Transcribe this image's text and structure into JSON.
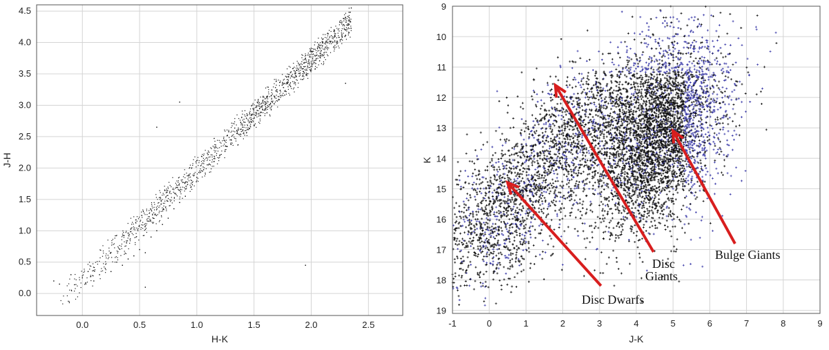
{
  "chart_data": [
    {
      "type": "scatter",
      "title": "",
      "xlabel": "H-K",
      "ylabel": "J-H",
      "xlim": [
        -0.4,
        2.8
      ],
      "ylim": [
        -0.35,
        4.6
      ],
      "grid": true,
      "xticks": [
        "0.0",
        "0.5",
        "1.0",
        "1.5",
        "2.0",
        "2.5"
      ],
      "yticks": [
        "0.0",
        "0.5",
        "1.0",
        "1.5",
        "2.0",
        "2.5",
        "3.0",
        "3.5",
        "4.0",
        "4.5"
      ],
      "series": [
        {
          "color": "#000000",
          "points": [
            [
              -0.25,
              0.2
            ],
            [
              -0.2,
              0.15
            ],
            [
              -0.1,
              0.3
            ],
            [
              0.0,
              0.25
            ],
            [
              0.05,
              0.35
            ],
            [
              0.1,
              0.2
            ],
            [
              0.15,
              0.3
            ],
            [
              0.2,
              0.4
            ],
            [
              0.25,
              0.35
            ],
            [
              0.3,
              0.5
            ],
            [
              0.35,
              0.45
            ],
            [
              0.4,
              0.55
            ],
            [
              0.45,
              0.6
            ],
            [
              0.5,
              0.7
            ],
            [
              0.55,
              0.65
            ],
            [
              0.6,
              0.9
            ],
            [
              0.65,
              1.0
            ],
            [
              0.7,
              1.1
            ],
            [
              0.75,
              1.2
            ],
            [
              0.8,
              1.35
            ],
            [
              0.85,
              1.45
            ],
            [
              0.9,
              1.55
            ],
            [
              0.95,
              1.7
            ],
            [
              1.0,
              1.85
            ],
            [
              1.05,
              1.95
            ],
            [
              1.1,
              2.05
            ],
            [
              1.15,
              2.15
            ],
            [
              1.2,
              2.2
            ],
            [
              1.25,
              2.35
            ],
            [
              1.3,
              2.45
            ],
            [
              1.35,
              2.55
            ],
            [
              1.4,
              2.65
            ],
            [
              1.45,
              2.75
            ],
            [
              1.5,
              2.85
            ],
            [
              1.55,
              2.95
            ],
            [
              1.6,
              3.05
            ],
            [
              1.65,
              3.15
            ],
            [
              1.7,
              3.25
            ],
            [
              1.75,
              3.35
            ],
            [
              1.8,
              3.45
            ],
            [
              1.85,
              3.55
            ],
            [
              1.9,
              3.65
            ],
            [
              1.95,
              3.75
            ],
            [
              2.0,
              3.85
            ],
            [
              2.1,
              4.0
            ],
            [
              2.2,
              4.2
            ],
            [
              2.3,
              4.4
            ],
            [
              2.35,
              4.55
            ],
            [
              0.85,
              3.05
            ],
            [
              0.65,
              2.65
            ],
            [
              1.95,
              0.45
            ],
            [
              0.55,
              0.1
            ],
            [
              2.3,
              3.35
            ]
          ]
        }
      ]
    },
    {
      "type": "scatter",
      "title": "",
      "xlabel": "J-K",
      "ylabel": "K",
      "xlim": [
        -1,
        9
      ],
      "ylim": [
        19.1,
        9
      ],
      "y_inverted": true,
      "grid": true,
      "xticks": [
        "-1",
        "0",
        "1",
        "2",
        "3",
        "4",
        "5",
        "6",
        "7",
        "8",
        "9"
      ],
      "yticks": [
        "9",
        "10",
        "11",
        "12",
        "13",
        "14",
        "15",
        "16",
        "17",
        "18",
        "19"
      ],
      "series": [
        {
          "color": "#111111",
          "points": [
            [
              0.5,
              12.5
            ],
            [
              1,
              13
            ],
            [
              1.5,
              13.5
            ],
            [
              2,
              14
            ],
            [
              2.5,
              14.5
            ],
            [
              3,
              13
            ],
            [
              3.5,
              13.5
            ],
            [
              4,
              13.8
            ],
            [
              4.5,
              12.5
            ],
            [
              5,
              12
            ],
            [
              4.2,
              14.5
            ],
            [
              3.8,
              15
            ],
            [
              0.3,
              15.5
            ],
            [
              0.8,
              16
            ],
            [
              1.2,
              15
            ],
            [
              2.2,
              15.8
            ]
          ]
        },
        {
          "color": "#3a3aa8",
          "points": [
            [
              5,
              10
            ],
            [
              5.5,
              9.8
            ],
            [
              6,
              10.5
            ],
            [
              6.5,
              11
            ],
            [
              5.8,
              13
            ],
            [
              5.5,
              14
            ],
            [
              5,
              15
            ],
            [
              4.5,
              15.5
            ],
            [
              0,
              16.5
            ],
            [
              -0.5,
              17.5
            ],
            [
              1,
              17
            ],
            [
              2,
              17.5
            ]
          ]
        }
      ],
      "annotations": [
        {
          "text": "Disc Dwarfs",
          "arrow_to": [
            0.5,
            14.8
          ]
        },
        {
          "text": "Disc",
          "arrow_to": [
            1.8,
            11.6
          ]
        },
        {
          "text": "Giants"
        },
        {
          "text": "Bulge Giants",
          "arrow_to": [
            5.0,
            13.1
          ]
        }
      ]
    }
  ]
}
